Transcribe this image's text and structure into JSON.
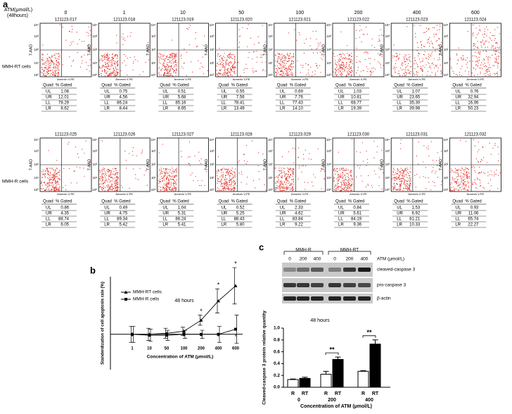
{
  "panel_a": {
    "label": "a",
    "header": [
      "ATM(μmol/L)",
      "(48hours)"
    ],
    "concentrations": [
      "0",
      "1",
      "10",
      "50",
      "100",
      "200",
      "400",
      "600"
    ],
    "y_axis_label": "7-AAD",
    "x_axis_label": "Annexin V-PE",
    "axis_ticks": [
      "10⁰",
      "10¹",
      "10²",
      "10³",
      "10⁴"
    ],
    "table_header": [
      "Quad",
      "% Gated"
    ],
    "quads": [
      "UL",
      "UR",
      "LL",
      "LR"
    ],
    "rows": [
      {
        "label": "MMH-RT cells",
        "plots": [
          {
            "id": "121123.017",
            "gated": [
              "1.08",
              "12.01",
              "78.29",
              "8.62"
            ]
          },
          {
            "id": "121123.018",
            "gated": [
              "0.75",
              "4.56",
              "86.24",
              "8.44"
            ]
          },
          {
            "id": "121123.019",
            "gated": [
              "0.51",
              "5.68",
              "85.16",
              "8.65"
            ]
          },
          {
            "id": "121123.020",
            "gated": [
              "0.55",
              "7.56",
              "78.41",
              "13.49"
            ]
          },
          {
            "id": "121123.021",
            "gated": [
              "0.69",
              "7.76",
              "77.43",
              "14.10"
            ]
          },
          {
            "id": "121123.022",
            "gated": [
              "1.03",
              "10.81",
              "68.77",
              "19.39"
            ]
          },
          {
            "id": "121123.023",
            "gated": [
              "1.07",
              "23.65",
              "35.30",
              "39.98"
            ]
          },
          {
            "id": "121123.024",
            "gated": [
              "0.76",
              "32.94",
              "16.06",
              "50.23"
            ]
          }
        ]
      },
      {
        "label": "MMH-R cells",
        "plots": [
          {
            "id": "121123.025",
            "gated": [
              "0.86",
              "4.35",
              "88.74",
              "6.05"
            ]
          },
          {
            "id": "121123.026",
            "gated": [
              "0.49",
              "4.75",
              "89.34",
              "5.42"
            ]
          },
          {
            "id": "121123.027",
            "gated": [
              "1.04",
              "5.31",
              "88.24",
              "5.41"
            ]
          },
          {
            "id": "121123.028",
            "gated": [
              "0.52",
              "5.25",
              "88.43",
              "5.80"
            ]
          },
          {
            "id": "121123.029",
            "gated": [
              "2.33",
              "4.62",
              "83.84",
              "9.22"
            ]
          },
          {
            "id": "121123.030",
            "gated": [
              "0.84",
              "5.61",
              "84.19",
              "9.36"
            ]
          },
          {
            "id": "121123.031",
            "gated": [
              "1.53",
              "6.92",
              "81.21",
              "10.33"
            ]
          },
          {
            "id": "121123.032",
            "gated": [
              "0.93",
              "11.06",
              "65.74",
              "22.27"
            ]
          }
        ]
      }
    ]
  },
  "panel_c_blot": {
    "label": "c",
    "groups": [
      "MMH-R",
      "MMH-RT"
    ],
    "lanes": [
      "0",
      "200",
      "400",
      "0",
      "200",
      "400"
    ],
    "unit_label": "ATM (μmol/L)",
    "bands": [
      "cleaved-caspase 3",
      "pro-caspase 3",
      "β-actin"
    ]
  },
  "chart_data": [
    {
      "type": "line",
      "label": "b",
      "title": "48 hours",
      "y_label": "Standerdization of cell apoptosis rate (%)",
      "x_label": "Concentration of ATM (μmol/L)",
      "categories": [
        "1",
        "10",
        "50",
        "100",
        "200",
        "400",
        "600"
      ],
      "ylim": [
        -35,
        57
      ],
      "series": [
        {
          "name": "MMH-RT cells",
          "color": "#000000",
          "values": [
            0,
            0,
            1,
            3,
            14,
            33,
            48
          ],
          "errors": [
            8,
            6,
            5,
            4,
            5,
            12,
            18
          ]
        },
        {
          "name": "MMH-R cells",
          "color": "#000000",
          "values": [
            0,
            -1,
            -1,
            0,
            0,
            0,
            5
          ],
          "errors": [
            8,
            6,
            5,
            4,
            4,
            8,
            14
          ]
        }
      ],
      "annotations": [
        {
          "text": "*",
          "category": "200"
        },
        {
          "text": "*",
          "category": "400"
        },
        {
          "text": "*",
          "category": "600"
        }
      ]
    },
    {
      "type": "bar",
      "title": "48 hours",
      "y_label": "Cleaved-caspase 3 protein relative quantity",
      "x_label": "Concentration of ATM (μmol/L)",
      "categories": [
        "0",
        "200",
        "400"
      ],
      "ylim": [
        0,
        1
      ],
      "yticks": [
        {
          "value": 0,
          "label": "0.0"
        },
        0.2,
        0.4,
        0.6,
        0.8,
        {
          "value": 1,
          "label": "1.0"
        }
      ],
      "series": [
        {
          "name": "R",
          "color": "#ffffff",
          "values": [
            0.13,
            0.22,
            0.27
          ],
          "errors": [
            0.01,
            0.05,
            0.01
          ]
        },
        {
          "name": "RT",
          "color": "#000000",
          "values": [
            0.15,
            0.47,
            0.73
          ],
          "errors": [
            0.02,
            0.04,
            0.07
          ]
        }
      ],
      "annotations": [
        {
          "text": "**",
          "category": "200"
        },
        {
          "text": "**",
          "category": "400"
        }
      ]
    }
  ]
}
